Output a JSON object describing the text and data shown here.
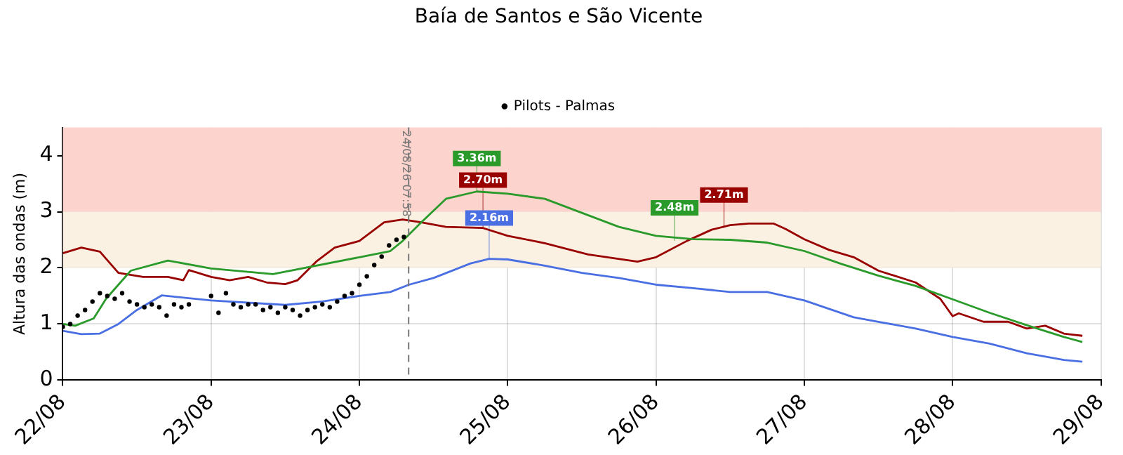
{
  "chart_data": {
    "type": "line",
    "title": "Baía de Santos e São Vicente",
    "ylabel": "Altura das ondas (m)",
    "xlim": [
      "--08-22",
      "--08-29"
    ],
    "xticks": [
      {
        "value": "--08-22",
        "label": "22/08"
      },
      {
        "value": "--08-23",
        "label": "23/08"
      },
      {
        "value": "--08-24",
        "label": "24/08"
      },
      {
        "value": "--08-25",
        "label": "25/08"
      },
      {
        "value": "--08-26",
        "label": "26/08"
      },
      {
        "value": "--08-27",
        "label": "27/08"
      },
      {
        "value": "--08-28",
        "label": "28/08"
      },
      {
        "value": "--08-29",
        "label": "29/08"
      }
    ],
    "ylim": [
      0,
      4.5
    ],
    "yticks": [
      0,
      1,
      2,
      3,
      4
    ],
    "grid": true,
    "legend": "top",
    "line_style": "solid",
    "bands": [
      {
        "axis": "y",
        "from": 2,
        "to": 3,
        "color": "#faf1e2"
      },
      {
        "axis": "y",
        "from": 3,
        "to": 4.5,
        "color": "#fdd3cd"
      }
    ],
    "ref_lines": [
      {
        "axis": "x",
        "value": "--08-24T07:58",
        "label": "24/08/26 07:58",
        "color": "#777777",
        "line_style": "dashed"
      }
    ],
    "annotations": [
      {
        "text": "3.36m",
        "x": "--08-24T19:00",
        "y": 3.36
      },
      {
        "text": "2.70m",
        "x": "--08-24T20:00",
        "y": 2.7
      },
      {
        "text": "2.16m",
        "x": "--08-24T21:00",
        "y": 2.16
      },
      {
        "text": "2.48m",
        "x": "--08-26T03:00",
        "y": 2.48
      },
      {
        "text": "2.71m",
        "x": "--08-26T11:00",
        "y": 2.71
      }
    ],
    "series": [
      {
        "name": "Pilots - Palmas",
        "type": "scatter",
        "marker": "circle",
        "color": "#000000",
        "x": [
          "--08-22T00:00",
          "--08-22T01:12",
          "--08-22T02:24",
          "--08-22T03:36",
          "--08-22T04:48",
          "--08-22T06:00",
          "--08-22T07:12",
          "--08-22T08:24",
          "--08-22T09:36",
          "--08-22T10:48",
          "--08-22T12:00",
          "--08-22T13:12",
          "--08-22T14:24",
          "--08-22T15:36",
          "--08-22T16:48",
          "--08-22T18:00",
          "--08-22T19:12",
          "--08-22T20:24",
          "--08-23T00:00",
          "--08-23T01:12",
          "--08-23T02:24",
          "--08-23T03:36",
          "--08-23T04:48",
          "--08-23T06:00",
          "--08-23T07:12",
          "--08-23T08:24",
          "--08-23T09:36",
          "--08-23T10:48",
          "--08-23T12:00",
          "--08-23T13:12",
          "--08-23T14:24",
          "--08-23T15:36",
          "--08-23T16:48",
          "--08-23T18:00",
          "--08-23T19:12",
          "--08-23T20:24",
          "--08-23T21:36",
          "--08-23T22:48",
          "--08-24T00:00",
          "--08-24T01:12",
          "--08-24T02:24",
          "--08-24T03:36",
          "--08-24T04:48",
          "--08-24T06:00",
          "--08-24T07:12"
        ],
        "values": [
          0.95,
          1.0,
          1.15,
          1.25,
          1.4,
          1.55,
          1.5,
          1.45,
          1.55,
          1.4,
          1.35,
          1.3,
          1.35,
          1.3,
          1.15,
          1.35,
          1.3,
          1.35,
          1.5,
          1.2,
          1.55,
          1.35,
          1.3,
          1.35,
          1.35,
          1.25,
          1.3,
          1.2,
          1.3,
          1.25,
          1.15,
          1.25,
          1.3,
          1.35,
          1.3,
          1.4,
          1.5,
          1.55,
          1.7,
          1.85,
          2.05,
          2.2,
          2.4,
          2.5,
          2.55
        ]
      },
      {
        "color": "#4a6fe3",
        "x": [
          "--08-22T00:00",
          "--08-22T03:00",
          "--08-22T06:00",
          "--08-22T09:00",
          "--08-22T12:00",
          "--08-22T16:00",
          "--08-23T00:00",
          "--08-23T12:00",
          "--08-23T18:00",
          "--08-24T00:00",
          "--08-24T05:00",
          "--08-24T08:00",
          "--08-24T12:00",
          "--08-24T18:00",
          "--08-24T21:00",
          "--08-25T00:00",
          "--08-25T06:00",
          "--08-25T12:00",
          "--08-25T18:00",
          "--08-26T00:00",
          "--08-26T06:00",
          "--08-26T12:00",
          "--08-26T18:00",
          "--08-27T00:00",
          "--08-27T08:00",
          "--08-27T12:00",
          "--08-27T18:00",
          "--08-28T00:00",
          "--08-28T06:00",
          "--08-28T12:00",
          "--08-28T18:00",
          "--08-28T21:00"
        ],
        "values": [
          0.88,
          0.82,
          0.83,
          1.0,
          1.25,
          1.51,
          1.42,
          1.34,
          1.4,
          1.5,
          1.57,
          1.7,
          1.82,
          2.08,
          2.16,
          2.15,
          2.04,
          1.91,
          1.82,
          1.7,
          1.64,
          1.57,
          1.57,
          1.42,
          1.12,
          1.04,
          0.92,
          0.77,
          0.65,
          0.48,
          0.36,
          0.33
        ]
      },
      {
        "color": "#2a9a2a",
        "x": [
          "--08-22T00:00",
          "--08-22T02:00",
          "--08-22T05:00",
          "--08-22T07:00",
          "--08-22T11:00",
          "--08-22T17:00",
          "--08-23T00:00",
          "--08-23T10:00",
          "--08-24T00:00",
          "--08-24T05:00",
          "--08-24T07:00",
          "--08-24T10:00",
          "--08-24T14:00",
          "--08-24T19:00",
          "--08-25T00:00",
          "--08-25T06:00",
          "--08-25T12:00",
          "--08-25T18:00",
          "--08-26T00:00",
          "--08-26T06:00",
          "--08-26T12:00",
          "--08-26T18:00",
          "--08-27T00:00",
          "--08-27T06:00",
          "--08-27T12:00",
          "--08-27T18:00",
          "--08-28T00:00",
          "--08-28T06:00",
          "--08-28T12:00",
          "--08-28T18:00",
          "--08-28T21:00"
        ],
        "values": [
          1.0,
          0.97,
          1.1,
          1.45,
          1.95,
          2.13,
          1.99,
          1.89,
          2.19,
          2.3,
          2.48,
          2.81,
          3.23,
          3.36,
          3.32,
          3.23,
          2.98,
          2.73,
          2.57,
          2.51,
          2.5,
          2.45,
          2.3,
          2.07,
          1.86,
          1.68,
          1.44,
          1.2,
          0.98,
          0.77,
          0.68
        ]
      },
      {
        "color": "#990000",
        "x": [
          "--08-22T00:00",
          "--08-22T03:00",
          "--08-22T06:00",
          "--08-22T09:00",
          "--08-22T13:00",
          "--08-22T17:00",
          "--08-22T19:30",
          "--08-22T20:24",
          "--08-23T00:00",
          "--08-23T03:00",
          "--08-23T06:00",
          "--08-23T09:00",
          "--08-23T12:00",
          "--08-23T14:00",
          "--08-23T17:00",
          "--08-23T20:00",
          "--08-24T00:00",
          "--08-24T04:00",
          "--08-24T07:00",
          "--08-24T10:00",
          "--08-24T14:00",
          "--08-24T20:00",
          "--08-25T00:00",
          "--08-25T06:00",
          "--08-25T13:00",
          "--08-25T21:00",
          "--08-26T00:00",
          "--08-26T05:00",
          "--08-26T09:00",
          "--08-26T12:00",
          "--08-26T15:00",
          "--08-26T19:00",
          "--08-26T21:00",
          "--08-27T00:00",
          "--08-27T04:00",
          "--08-27T08:00",
          "--08-27T12:00",
          "--08-27T18:00",
          "--08-27T22:00",
          "--08-28T00:00",
          "--08-28T01:00",
          "--08-28T05:00",
          "--08-28T09:00",
          "--08-28T12:00",
          "--08-28T15:00",
          "--08-28T18:00",
          "--08-28T21:00"
        ],
        "values": [
          2.26,
          2.36,
          2.29,
          1.91,
          1.84,
          1.84,
          1.78,
          1.96,
          1.84,
          1.78,
          1.84,
          1.74,
          1.71,
          1.78,
          2.11,
          2.36,
          2.48,
          2.81,
          2.86,
          2.81,
          2.73,
          2.71,
          2.57,
          2.44,
          2.24,
          2.11,
          2.19,
          2.48,
          2.68,
          2.76,
          2.79,
          2.79,
          2.69,
          2.51,
          2.32,
          2.19,
          1.95,
          1.74,
          1.45,
          1.14,
          1.19,
          1.04,
          1.04,
          0.92,
          0.97,
          0.83,
          0.79
        ]
      }
    ]
  }
}
